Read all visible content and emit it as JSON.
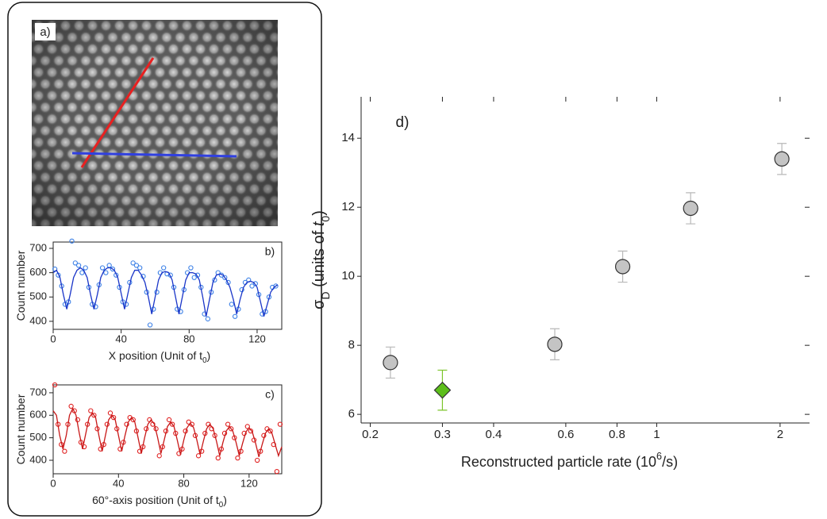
{
  "panel_a": {
    "label": "a)"
  },
  "chart_data": [
    {
      "type": "line",
      "annotation": "b)",
      "xlim": [
        0,
        134.5
      ],
      "xticks": [
        0,
        40,
        80,
        120
      ],
      "ylim": [
        367,
        726
      ],
      "yticks": [
        400,
        500,
        600,
        700
      ],
      "ylabel": [
        {
          "text": "Count number"
        }
      ],
      "xlabel": [
        {
          "text": "X position (Unit of t"
        },
        {
          "text": "0",
          "sub": true
        },
        {
          "text": ")"
        }
      ],
      "series": [
        {
          "style": "markers",
          "color": "#3a7fe6",
          "x": [
            1,
            3,
            5,
            7,
            9,
            11,
            13,
            15,
            17,
            19,
            21,
            23,
            25,
            27,
            29,
            31,
            33,
            35,
            37,
            39,
            41,
            43,
            45,
            47,
            49,
            51,
            53,
            55,
            57,
            59,
            61,
            63,
            65,
            67,
            69,
            71,
            73,
            75,
            77,
            79,
            81,
            83,
            85,
            87,
            89,
            91,
            93,
            95,
            97,
            99,
            101,
            103,
            105,
            107,
            109,
            111,
            113,
            115,
            117,
            119,
            121,
            123,
            125,
            127,
            129,
            131
          ],
          "values": [
            615,
            590,
            545,
            470,
            480,
            730,
            640,
            630,
            600,
            620,
            540,
            470,
            460,
            550,
            620,
            600,
            630,
            615,
            590,
            540,
            480,
            470,
            560,
            640,
            630,
            620,
            585,
            520,
            385,
            450,
            520,
            600,
            620,
            595,
            590,
            540,
            450,
            440,
            530,
            600,
            620,
            580,
            590,
            540,
            430,
            410,
            520,
            570,
            600,
            590,
            580,
            560,
            470,
            420,
            450,
            530,
            560,
            570,
            545,
            555,
            510,
            430,
            440,
            500,
            540,
            545
          ]
        },
        {
          "style": "line",
          "color": "#1a35c8",
          "x": [
            0,
            2,
            4,
            6,
            8,
            10,
            12,
            14,
            16,
            18,
            20,
            22,
            24,
            26,
            28,
            30,
            32,
            34,
            36,
            38,
            40,
            42,
            44,
            46,
            48,
            50,
            52,
            54,
            56,
            58,
            60,
            62,
            64,
            66,
            68,
            70,
            72,
            74,
            76,
            78,
            80,
            82,
            84,
            86,
            88,
            90,
            92,
            94,
            96,
            98,
            100,
            102,
            104,
            106,
            108,
            110,
            112,
            114,
            116,
            118,
            120,
            122,
            124,
            126,
            128,
            130,
            132
          ],
          "values": [
            600,
            610,
            580,
            510,
            450,
            510,
            580,
            610,
            620,
            610,
            580,
            510,
            450,
            510,
            580,
            610,
            620,
            620,
            610,
            580,
            515,
            450,
            515,
            580,
            610,
            610,
            590,
            560,
            500,
            430,
            500,
            570,
            600,
            605,
            600,
            570,
            500,
            430,
            500,
            570,
            600,
            600,
            595,
            570,
            500,
            420,
            490,
            560,
            590,
            595,
            590,
            570,
            540,
            490,
            430,
            490,
            540,
            560,
            565,
            560,
            540,
            480,
            420,
            470,
            520,
            540,
            550
          ]
        }
      ]
    },
    {
      "type": "line",
      "annotation": "c)",
      "xlim": [
        0,
        140
      ],
      "xticks": [
        0,
        40,
        80,
        120
      ],
      "ylim": [
        340,
        735
      ],
      "yticks": [
        400,
        500,
        600,
        700
      ],
      "ylabel": [
        {
          "text": "Count number"
        }
      ],
      "xlabel": [
        {
          "text": "60°-axis position (Unit of t"
        },
        {
          "text": "0",
          "sub": true
        },
        {
          "text": ")"
        }
      ],
      "series": [
        {
          "style": "markers",
          "color": "#e02020",
          "x": [
            1,
            3,
            5,
            7,
            9,
            11,
            13,
            15,
            17,
            19,
            21,
            23,
            25,
            27,
            29,
            31,
            33,
            35,
            37,
            39,
            41,
            43,
            45,
            47,
            49,
            51,
            53,
            55,
            57,
            59,
            61,
            63,
            65,
            67,
            69,
            71,
            73,
            75,
            77,
            79,
            81,
            83,
            85,
            87,
            89,
            91,
            93,
            95,
            97,
            99,
            101,
            103,
            105,
            107,
            109,
            111,
            113,
            115,
            117,
            119,
            121,
            123,
            125,
            127,
            129,
            131,
            133,
            135,
            137,
            139
          ],
          "values": [
            735,
            560,
            470,
            440,
            560,
            640,
            620,
            580,
            480,
            460,
            560,
            620,
            600,
            540,
            450,
            470,
            560,
            610,
            590,
            540,
            450,
            480,
            560,
            590,
            580,
            530,
            440,
            460,
            540,
            580,
            560,
            540,
            420,
            460,
            530,
            580,
            560,
            520,
            430,
            450,
            530,
            570,
            560,
            510,
            420,
            440,
            520,
            560,
            540,
            510,
            410,
            450,
            520,
            560,
            540,
            500,
            410,
            440,
            520,
            550,
            530,
            490,
            400,
            440,
            510,
            540,
            530,
            470,
            350,
            560
          ]
        },
        {
          "style": "line",
          "color": "#c81818",
          "x": [
            0,
            2,
            4,
            6,
            8,
            10,
            12,
            14,
            16,
            18,
            20,
            22,
            24,
            26,
            28,
            30,
            32,
            34,
            36,
            38,
            40,
            42,
            44,
            46,
            48,
            50,
            52,
            54,
            56,
            58,
            60,
            62,
            64,
            66,
            68,
            70,
            72,
            74,
            76,
            78,
            80,
            82,
            84,
            86,
            88,
            90,
            92,
            94,
            96,
            98,
            100,
            102,
            104,
            106,
            108,
            110,
            112,
            114,
            116,
            118,
            120,
            122,
            124,
            126,
            128,
            130,
            132,
            134,
            136,
            138,
            140
          ],
          "values": [
            620,
            600,
            510,
            450,
            510,
            600,
            630,
            600,
            520,
            450,
            520,
            590,
            610,
            590,
            510,
            440,
            510,
            580,
            600,
            580,
            510,
            440,
            510,
            570,
            590,
            570,
            500,
            430,
            500,
            560,
            580,
            560,
            500,
            430,
            490,
            550,
            570,
            550,
            490,
            425,
            490,
            545,
            565,
            545,
            490,
            425,
            485,
            540,
            560,
            540,
            485,
            420,
            480,
            530,
            550,
            530,
            480,
            420,
            475,
            525,
            545,
            525,
            475,
            415,
            470,
            520,
            540,
            520,
            470,
            420,
            460
          ]
        }
      ]
    },
    {
      "type": "scatter",
      "annotation": "d)",
      "log_x": true,
      "xlim": [
        0.19,
        2.36
      ],
      "xticks": [
        0.2,
        0.3,
        0.4,
        0.6,
        0.8,
        1,
        2
      ],
      "ylim": [
        5.75,
        15.2
      ],
      "yticks": [
        6,
        8,
        10,
        12,
        14
      ],
      "xlabel": [
        {
          "text": "Reconstructed particle rate (10"
        },
        {
          "text": "6",
          "sup": true
        },
        {
          "text": "/s)"
        }
      ],
      "ylabel": [
        {
          "text": "σ"
        },
        {
          "text": "D",
          "sub": true
        },
        {
          "text": " (units of "
        },
        {
          "text": "t",
          "italic": true
        },
        {
          "text": "0",
          "sub": true
        },
        {
          "text": ")"
        }
      ],
      "series": [
        {
          "marker": "circle",
          "color": "#c4c4c4",
          "error_color": "#b8b8b8",
          "x": [
            0.224,
            0.564,
            0.826,
            1.21,
            2.02
          ],
          "values": [
            7.5,
            8.03,
            10.28,
            11.97,
            13.4
          ],
          "errors": [
            0.45,
            0.45,
            0.45,
            0.45,
            0.45
          ]
        },
        {
          "marker": "diamond",
          "color": "#5cbf1a",
          "error_color": "#7cc42a",
          "x": [
            0.3
          ],
          "values": [
            6.7
          ],
          "errors": [
            0.58
          ]
        }
      ]
    }
  ]
}
